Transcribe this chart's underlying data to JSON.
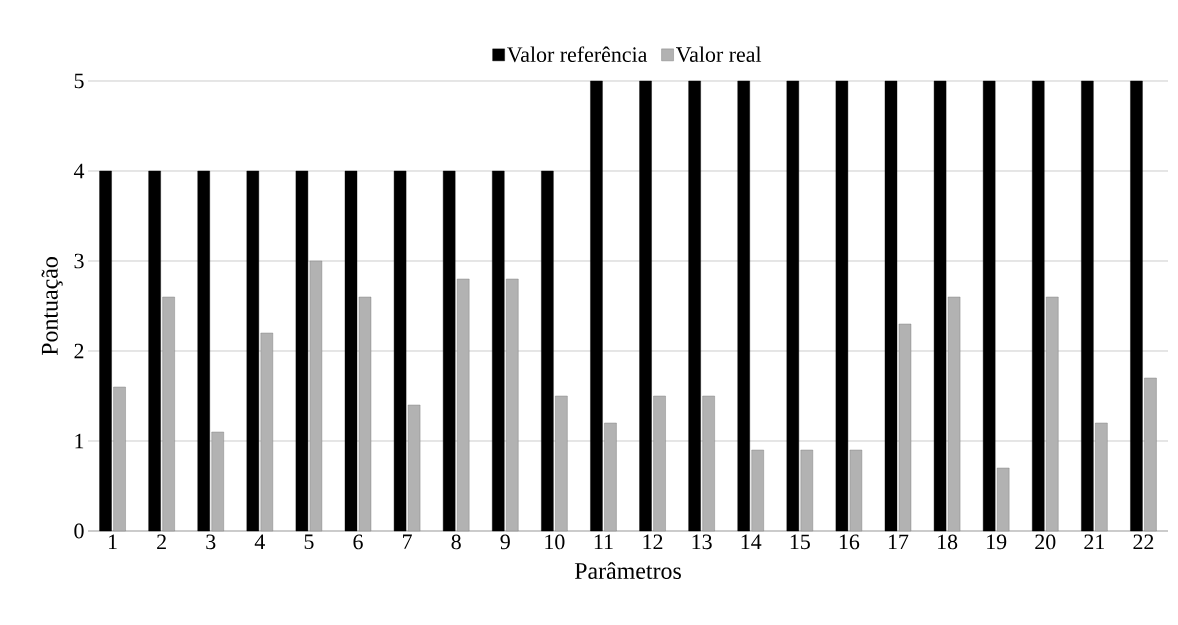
{
  "chart_data": {
    "type": "bar",
    "xlabel": "Parâmetros",
    "ylabel": "Pontuação",
    "categories": [
      "1",
      "2",
      "3",
      "4",
      "5",
      "6",
      "7",
      "8",
      "9",
      "10",
      "11",
      "12",
      "13",
      "14",
      "15",
      "16",
      "17",
      "18",
      "19",
      "20",
      "21",
      "22"
    ],
    "series": [
      {
        "name": "Valor referência",
        "color": "#000000",
        "values": [
          4,
          4,
          4,
          4,
          4,
          4,
          4,
          4,
          4,
          4,
          5,
          5,
          5,
          5,
          5,
          5,
          5,
          5,
          5,
          5,
          5,
          5
        ]
      },
      {
        "name": "Valor real",
        "color": "#b2b2b2",
        "values": [
          1.6,
          2.6,
          1.1,
          2.2,
          3.0,
          2.6,
          1.4,
          2.8,
          2.8,
          1.5,
          1.2,
          1.5,
          1.5,
          0.9,
          0.9,
          0.9,
          2.3,
          2.6,
          0.7,
          2.6,
          1.2,
          1.7
        ]
      }
    ],
    "ylim": [
      0,
      5
    ],
    "yticks": [
      0,
      1,
      2,
      3,
      4,
      5
    ],
    "grid": "y",
    "legend": "top"
  }
}
